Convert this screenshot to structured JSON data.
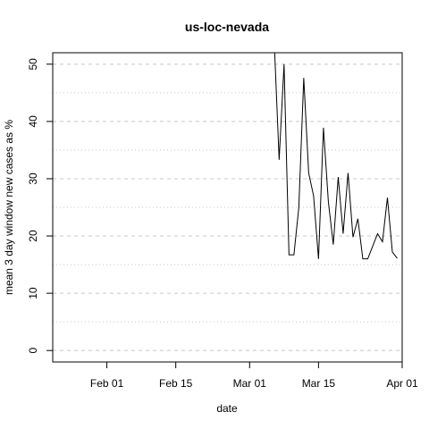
{
  "chart_data": {
    "type": "line",
    "title": "us-loc-nevada",
    "xlabel": "date",
    "ylabel": "mean  3  day window new cases as %",
    "x_ticks": [
      "Feb 01",
      "Feb 15",
      "Mar 01",
      "Mar 15",
      "Apr 01"
    ],
    "y_ticks": [
      0,
      10,
      20,
      30,
      40,
      50
    ],
    "xlim": [
      "2020-01-21",
      "2020-04-01"
    ],
    "ylim": [
      -2,
      52
    ],
    "grid": true,
    "series": [
      {
        "x": [
          "2020-03-06",
          "2020-03-07",
          "2020-03-08",
          "2020-03-09",
          "2020-03-10",
          "2020-03-11",
          "2020-03-12",
          "2020-03-13",
          "2020-03-14",
          "2020-03-15",
          "2020-03-16",
          "2020-03-17",
          "2020-03-18",
          "2020-03-19",
          "2020-03-20",
          "2020-03-21",
          "2020-03-22",
          "2020-03-23",
          "2020-03-24",
          "2020-03-25",
          "2020-03-26",
          "2020-03-27",
          "2020-03-28",
          "2020-03-29",
          "2020-03-30",
          "2020-03-31"
        ],
        "y": [
          54.0,
          33.3,
          50.0,
          16.7,
          16.7,
          25.0,
          47.6,
          31.0,
          27.0,
          16.0,
          38.9,
          26.0,
          18.5,
          30.3,
          20.4,
          31.0,
          19.8,
          23.0,
          16.0,
          16.0,
          18.2,
          20.4,
          19.0,
          26.7,
          17.2,
          16.1
        ]
      }
    ]
  }
}
